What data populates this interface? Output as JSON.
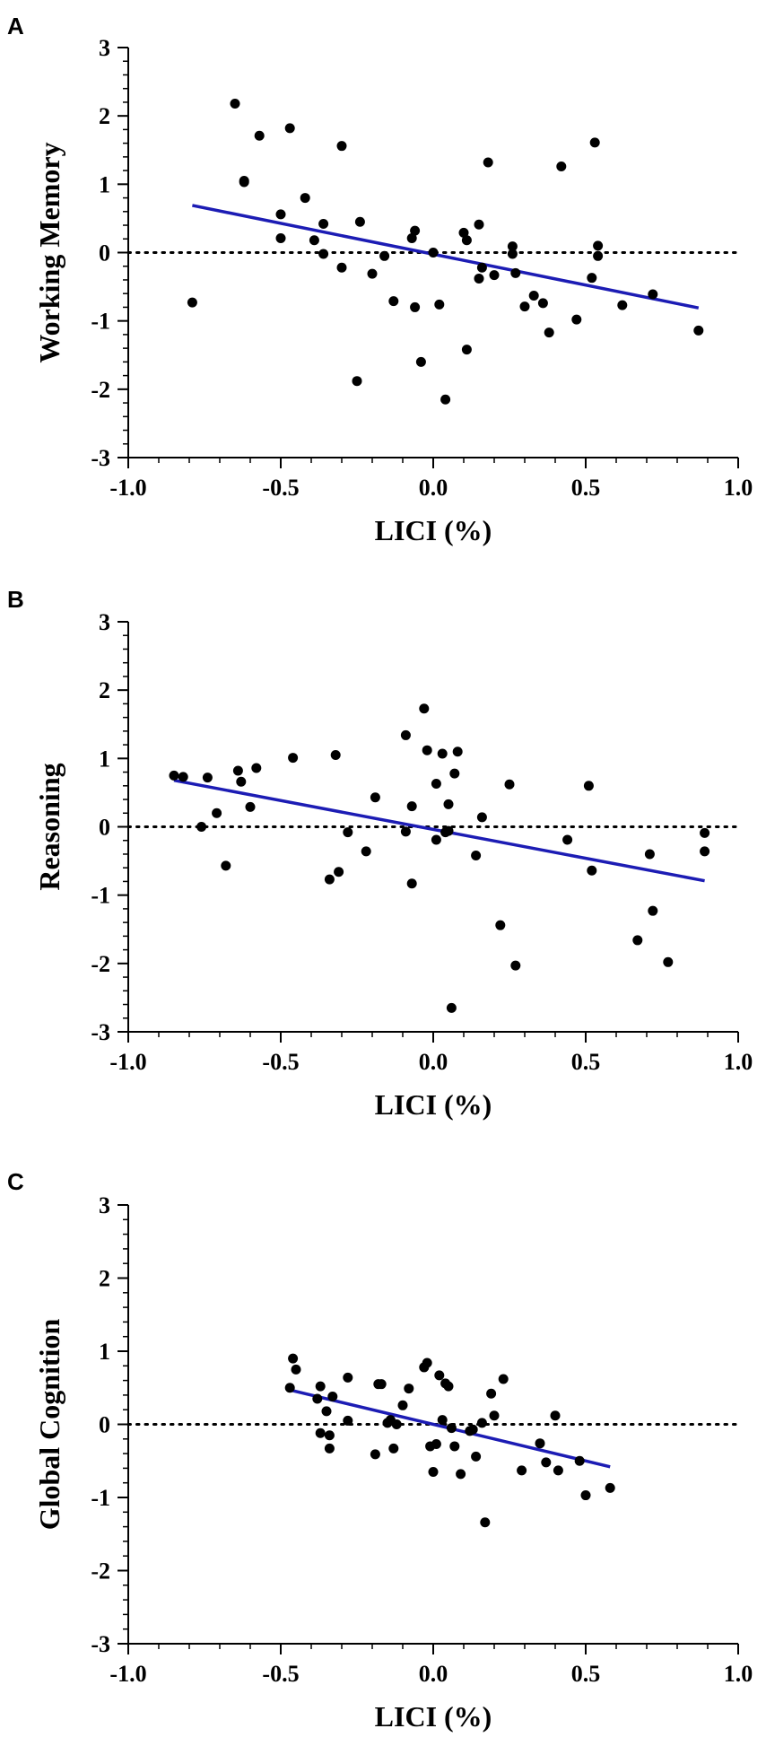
{
  "chart_data": [
    {
      "type": "scatter",
      "panel": "A",
      "xlabel": "LICI (%)",
      "ylabel": "Working Memory",
      "xlim": [
        -1.0,
        1.0
      ],
      "ylim": [
        -3,
        3
      ],
      "xticks": [
        -1.0,
        -0.5,
        0.0,
        0.5,
        1.0
      ],
      "xtick_labels": [
        "-1.0",
        "-0.5",
        "0.0",
        "0.5",
        "1.0"
      ],
      "yticks": [
        -3,
        -2,
        -1,
        0,
        1,
        2,
        3
      ],
      "ytick_labels": [
        "-3",
        "-2",
        "-1",
        "0",
        "1",
        "2",
        "3"
      ],
      "reference_line_y": 0,
      "fit_line": {
        "x": [
          -0.79,
          0.87
        ],
        "y": [
          0.69,
          -0.81
        ],
        "color": "#1c1cb4"
      },
      "points": [
        [
          -0.79,
          -0.73
        ],
        [
          -0.65,
          2.18
        ],
        [
          -0.62,
          1.05
        ],
        [
          -0.62,
          1.03
        ],
        [
          -0.57,
          1.71
        ],
        [
          -0.5,
          0.56
        ],
        [
          -0.5,
          0.21
        ],
        [
          -0.47,
          1.82
        ],
        [
          -0.42,
          0.8
        ],
        [
          -0.39,
          0.18
        ],
        [
          -0.36,
          0.42
        ],
        [
          -0.36,
          -0.02
        ],
        [
          -0.3,
          -0.22
        ],
        [
          -0.3,
          1.56
        ],
        [
          -0.24,
          0.45
        ],
        [
          -0.25,
          -1.88
        ],
        [
          -0.2,
          -0.31
        ],
        [
          -0.16,
          -0.05
        ],
        [
          -0.13,
          -0.71
        ],
        [
          -0.07,
          0.21
        ],
        [
          -0.06,
          0.32
        ],
        [
          -0.06,
          -0.8
        ],
        [
          -0.04,
          -1.6
        ],
        [
          0.0,
          0.0
        ],
        [
          0.02,
          -0.76
        ],
        [
          0.04,
          -2.15
        ],
        [
          0.1,
          0.29
        ],
        [
          0.11,
          0.18
        ],
        [
          0.11,
          -1.42
        ],
        [
          0.15,
          -0.38
        ],
        [
          0.15,
          0.41
        ],
        [
          0.16,
          -0.22
        ],
        [
          0.18,
          1.32
        ],
        [
          0.2,
          -0.33
        ],
        [
          0.26,
          -0.02
        ],
        [
          0.26,
          0.09
        ],
        [
          0.27,
          -0.3
        ],
        [
          0.3,
          -0.79
        ],
        [
          0.33,
          -0.63
        ],
        [
          0.36,
          -0.74
        ],
        [
          0.38,
          -1.17
        ],
        [
          0.42,
          1.26
        ],
        [
          0.47,
          -0.98
        ],
        [
          0.52,
          -0.37
        ],
        [
          0.53,
          1.61
        ],
        [
          0.54,
          0.1
        ],
        [
          0.54,
          -0.05
        ],
        [
          0.62,
          -0.77
        ],
        [
          0.72,
          -0.61
        ],
        [
          0.87,
          -1.14
        ]
      ]
    },
    {
      "type": "scatter",
      "panel": "B",
      "xlabel": "LICI (%)",
      "ylabel": "Reasoning",
      "xlim": [
        -1.0,
        1.0
      ],
      "ylim": [
        -3,
        3
      ],
      "xticks": [
        -1.0,
        -0.5,
        0.0,
        0.5,
        1.0
      ],
      "xtick_labels": [
        "-1.0",
        "-0.5",
        "0.0",
        "0.5",
        "1.0"
      ],
      "yticks": [
        -3,
        -2,
        -1,
        0,
        1,
        2,
        3
      ],
      "ytick_labels": [
        "-3",
        "-2",
        "-1",
        "0",
        "1",
        "2",
        "3"
      ],
      "reference_line_y": 0,
      "fit_line": {
        "x": [
          -0.85,
          0.89
        ],
        "y": [
          0.68,
          -0.79
        ],
        "color": "#1c1cb4"
      },
      "points": [
        [
          -0.85,
          0.75
        ],
        [
          -0.82,
          0.73
        ],
        [
          -0.76,
          0.0
        ],
        [
          -0.74,
          0.72
        ],
        [
          -0.71,
          0.2
        ],
        [
          -0.68,
          -0.57
        ],
        [
          -0.64,
          0.82
        ],
        [
          -0.63,
          0.66
        ],
        [
          -0.6,
          0.29
        ],
        [
          -0.58,
          0.86
        ],
        [
          -0.46,
          1.01
        ],
        [
          -0.34,
          -0.77
        ],
        [
          -0.32,
          1.05
        ],
        [
          -0.31,
          -0.66
        ],
        [
          -0.28,
          -0.08
        ],
        [
          -0.22,
          -0.36
        ],
        [
          -0.19,
          0.43
        ],
        [
          -0.09,
          -0.07
        ],
        [
          -0.09,
          1.34
        ],
        [
          -0.07,
          -0.83
        ],
        [
          -0.07,
          0.3
        ],
        [
          -0.03,
          1.73
        ],
        [
          -0.02,
          1.12
        ],
        [
          0.01,
          0.63
        ],
        [
          0.01,
          -0.19
        ],
        [
          0.03,
          1.07
        ],
        [
          0.04,
          -0.08
        ],
        [
          0.05,
          -0.06
        ],
        [
          0.05,
          0.33
        ],
        [
          0.06,
          -2.65
        ],
        [
          0.07,
          0.78
        ],
        [
          0.08,
          1.1
        ],
        [
          0.14,
          -0.42
        ],
        [
          0.16,
          0.14
        ],
        [
          0.22,
          -1.44
        ],
        [
          0.25,
          0.62
        ],
        [
          0.27,
          -2.03
        ],
        [
          0.44,
          -0.19
        ],
        [
          0.51,
          0.6
        ],
        [
          0.52,
          -0.64
        ],
        [
          0.67,
          -1.66
        ],
        [
          0.71,
          -0.4
        ],
        [
          0.72,
          -1.23
        ],
        [
          0.77,
          -1.98
        ],
        [
          0.89,
          -0.09
        ],
        [
          0.89,
          -0.36
        ]
      ]
    },
    {
      "type": "scatter",
      "panel": "C",
      "xlabel": "LICI (%)",
      "ylabel": "Global Cognition",
      "xlim": [
        -1.0,
        1.0
      ],
      "ylim": [
        -3,
        3
      ],
      "xticks": [
        -1.0,
        -0.5,
        0.0,
        0.5,
        1.0
      ],
      "xtick_labels": [
        "-1.0",
        "-0.5",
        "0.0",
        "0.5",
        "1.0"
      ],
      "yticks": [
        -3,
        -2,
        -1,
        0,
        1,
        2,
        3
      ],
      "ytick_labels": [
        "-3",
        "-2",
        "-1",
        "0",
        "1",
        "2",
        "3"
      ],
      "reference_line_y": 0,
      "fit_line": {
        "x": [
          -0.47,
          0.58
        ],
        "y": [
          0.47,
          -0.58
        ],
        "color": "#1c1cb4"
      },
      "points": [
        [
          -0.47,
          0.5
        ],
        [
          -0.46,
          0.9
        ],
        [
          -0.45,
          0.75
        ],
        [
          -0.38,
          0.35
        ],
        [
          -0.37,
          0.52
        ],
        [
          -0.37,
          -0.12
        ],
        [
          -0.35,
          0.18
        ],
        [
          -0.34,
          -0.33
        ],
        [
          -0.34,
          -0.15
        ],
        [
          -0.33,
          0.38
        ],
        [
          -0.28,
          0.05
        ],
        [
          -0.28,
          0.64
        ],
        [
          -0.19,
          -0.41
        ],
        [
          -0.18,
          0.55
        ],
        [
          -0.17,
          0.55
        ],
        [
          -0.15,
          0.02
        ],
        [
          -0.14,
          0.06
        ],
        [
          -0.13,
          -0.33
        ],
        [
          -0.12,
          0.0
        ],
        [
          -0.1,
          0.26
        ],
        [
          -0.08,
          0.49
        ],
        [
          -0.03,
          0.78
        ],
        [
          -0.02,
          0.84
        ],
        [
          -0.01,
          -0.3
        ],
        [
          0.0,
          -0.65
        ],
        [
          0.01,
          -0.27
        ],
        [
          0.02,
          0.67
        ],
        [
          0.03,
          0.06
        ],
        [
          0.04,
          0.56
        ],
        [
          0.05,
          0.52
        ],
        [
          0.06,
          -0.05
        ],
        [
          0.07,
          -0.3
        ],
        [
          0.09,
          -0.68
        ],
        [
          0.12,
          -0.09
        ],
        [
          0.13,
          -0.07
        ],
        [
          0.14,
          -0.44
        ],
        [
          0.16,
          0.02
        ],
        [
          0.17,
          -1.34
        ],
        [
          0.19,
          0.42
        ],
        [
          0.2,
          0.12
        ],
        [
          0.23,
          0.62
        ],
        [
          0.29,
          -0.63
        ],
        [
          0.35,
          -0.26
        ],
        [
          0.37,
          -0.52
        ],
        [
          0.4,
          0.12
        ],
        [
          0.41,
          -0.63
        ],
        [
          0.48,
          -0.5
        ],
        [
          0.5,
          -0.97
        ],
        [
          0.58,
          -0.87
        ]
      ]
    }
  ]
}
